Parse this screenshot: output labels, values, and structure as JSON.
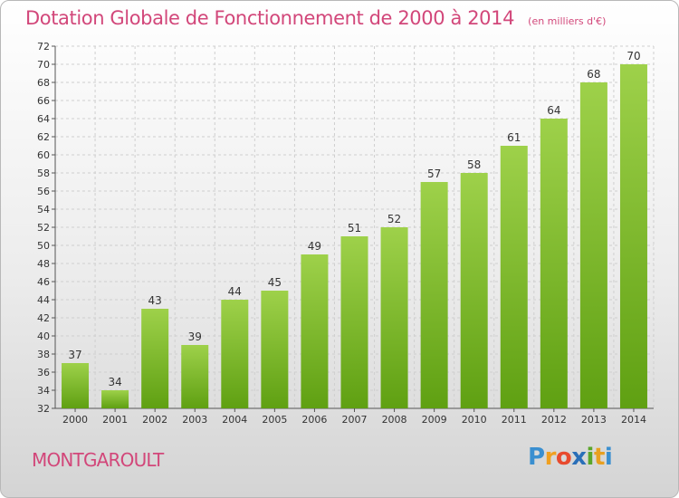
{
  "header": {
    "title": "Dotation Globale de Fonctionnement de 2000 à 2014",
    "unit": "(en milliers d'€)"
  },
  "commune": "MONTGAROULT",
  "logo": {
    "letters": [
      "P",
      "r",
      "o",
      "x",
      "i",
      "t",
      "i"
    ],
    "colors": [
      "#3a8fd0",
      "#f0a020",
      "#e84a2e",
      "#2a6fb8",
      "#5aa62a",
      "#e8a020",
      "#3a8fd0"
    ]
  },
  "colors": {
    "bar_light": "#9ed14a",
    "bar_dark": "#5fa012",
    "grid": "#cfcfcf",
    "text": "#333333",
    "accent": "#d2477a"
  },
  "chart_data": {
    "type": "bar",
    "categories": [
      "2000",
      "2001",
      "2002",
      "2003",
      "2004",
      "2005",
      "2006",
      "2007",
      "2008",
      "2009",
      "2010",
      "2011",
      "2012",
      "2013",
      "2014"
    ],
    "values": [
      37,
      34,
      43,
      39,
      44,
      45,
      49,
      51,
      52,
      57,
      58,
      61,
      64,
      68,
      70
    ],
    "ylim": [
      32,
      72
    ],
    "yticks": [
      32,
      34,
      36,
      38,
      40,
      42,
      44,
      46,
      48,
      50,
      52,
      54,
      56,
      58,
      60,
      62,
      64,
      66,
      68,
      70,
      72
    ],
    "grid": true,
    "data_labels": true
  }
}
